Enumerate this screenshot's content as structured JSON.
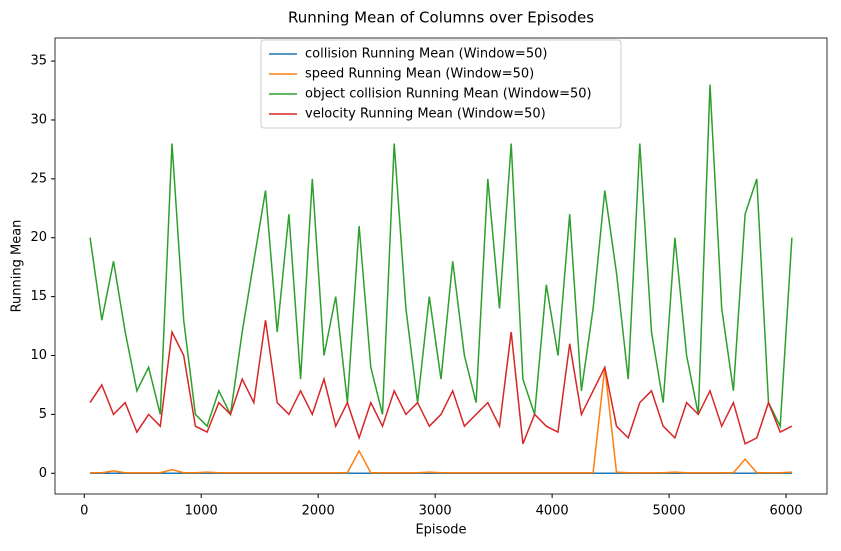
{
  "chart_data": {
    "type": "line",
    "title": "Running Mean of Columns over Episodes",
    "x_label": "Episode",
    "y_label": "Running Mean",
    "x": [
      50,
      150,
      250,
      350,
      450,
      550,
      650,
      750,
      850,
      950,
      1050,
      1150,
      1250,
      1350,
      1450,
      1550,
      1650,
      1750,
      1850,
      1950,
      2050,
      2150,
      2250,
      2350,
      2450,
      2550,
      2650,
      2750,
      2850,
      2950,
      3050,
      3150,
      3250,
      3350,
      3450,
      3550,
      3650,
      3750,
      3850,
      3950,
      4050,
      4150,
      4250,
      4350,
      4450,
      4550,
      4650,
      4750,
      4850,
      4950,
      5050,
      5150,
      5250,
      5350,
      5450,
      5550,
      5650,
      5750,
      5850,
      5950,
      6050
    ],
    "series": [
      {
        "name": "collision Running Mean (Window=50)",
        "color": "#1f77b4",
        "values": [
          0,
          0,
          0,
          0,
          0,
          0,
          0,
          0,
          0,
          0,
          0,
          0,
          0,
          0,
          0,
          0,
          0,
          0,
          0,
          0,
          0,
          0,
          0,
          0,
          0,
          0,
          0,
          0,
          0,
          0,
          0,
          0,
          0,
          0,
          0,
          0,
          0,
          0,
          0,
          0,
          0,
          0,
          0,
          0,
          0,
          0,
          0,
          0,
          0,
          0,
          0,
          0,
          0,
          0,
          0,
          0,
          0,
          0,
          0,
          0,
          0
        ]
      },
      {
        "name": "speed Running Mean (Window=50)",
        "color": "#ff7f0e",
        "values": [
          0.05,
          0.05,
          0.2,
          0.05,
          0.05,
          0.05,
          0.05,
          0.3,
          0.05,
          0.05,
          0.1,
          0.05,
          0.05,
          0.05,
          0.05,
          0.05,
          0.05,
          0.05,
          0.05,
          0.05,
          0.05,
          0.05,
          0.05,
          1.9,
          0.05,
          0.05,
          0.05,
          0.05,
          0.05,
          0.1,
          0.05,
          0.05,
          0.05,
          0.05,
          0.05,
          0.05,
          0.05,
          0.05,
          0.05,
          0.05,
          0.05,
          0.05,
          0.05,
          0.05,
          9,
          0.1,
          0.05,
          0.05,
          0.05,
          0.05,
          0.1,
          0.05,
          0.05,
          0.05,
          0.05,
          0.05,
          1.2,
          0.05,
          0.05,
          0.05,
          0.1
        ]
      },
      {
        "name": "object collision Running Mean (Window=50)",
        "color": "#2ca02c",
        "values": [
          20,
          13,
          18,
          12,
          7,
          9,
          5,
          28,
          13,
          5,
          4,
          7,
          5,
          12,
          18,
          24,
          12,
          22,
          8,
          25,
          10,
          15,
          6,
          21,
          9,
          5,
          28,
          14,
          6,
          15,
          8,
          18,
          10,
          6,
          25,
          14,
          28,
          8,
          5,
          16,
          10,
          22,
          7,
          14,
          24,
          17,
          8,
          28,
          12,
          6,
          20,
          10,
          5,
          33,
          14,
          7,
          22,
          25,
          6,
          4,
          20
        ]
      },
      {
        "name": "velocity Running Mean (Window=50)",
        "color": "#d62728",
        "values": [
          6,
          7.5,
          5,
          6,
          3.5,
          5,
          4,
          12,
          10,
          4,
          3.5,
          6,
          5,
          8,
          6,
          13,
          6,
          5,
          7,
          5,
          8,
          4,
          6,
          3,
          6,
          4,
          7,
          5,
          6,
          4,
          5,
          7,
          4,
          5,
          6,
          4,
          12,
          2.5,
          5,
          4,
          3.5,
          11,
          5,
          7,
          9,
          4,
          3,
          6,
          7,
          4,
          3,
          6,
          5,
          7,
          4,
          6,
          2.5,
          3,
          6,
          3.5,
          4
        ]
      }
    ],
    "xlim": [
      -250,
      6350
    ],
    "ylim": [
      -1.76,
      36.96
    ],
    "xticks": [
      0,
      1000,
      2000,
      3000,
      4000,
      5000,
      6000
    ],
    "yticks": [
      0,
      5,
      10,
      15,
      20,
      25,
      30,
      35
    ],
    "legend": "upper center"
  }
}
